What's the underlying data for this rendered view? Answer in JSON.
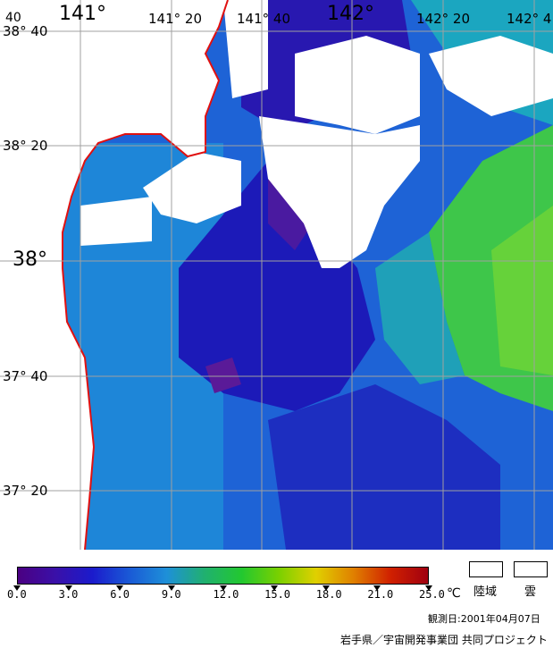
{
  "map": {
    "longitude_labels": [
      "40",
      "141°",
      "141° 20",
      "141° 40",
      "142°",
      "142° 20",
      "142° 4"
    ],
    "latitude_labels": [
      "38° 40",
      "38° 20",
      "38°",
      "37° 40",
      "37° 20"
    ]
  },
  "legend": {
    "ticks": [
      "0.0",
      "3.0",
      "6.0",
      "9.0",
      "12.0",
      "15.0",
      "18.0",
      "21.0",
      "25.0"
    ],
    "unit": "℃",
    "key_land": "陸域",
    "key_cloud": "雲",
    "stops": [
      "#4b0082",
      "#3a10a8",
      "#1b1bcc",
      "#1a5ad6",
      "#1e90d8",
      "#20b070",
      "#22c830",
      "#7ad000",
      "#e0d000",
      "#e08000",
      "#d02000",
      "#a00010"
    ]
  },
  "footer": {
    "observation": "観測日:2001年04月07日",
    "credit": "岩手県／宇宙開発事業団 共同プロジェクト"
  },
  "colors": {
    "coast": "#e01010",
    "grid": "#a0a0a0",
    "cloud": "#ffffff"
  }
}
